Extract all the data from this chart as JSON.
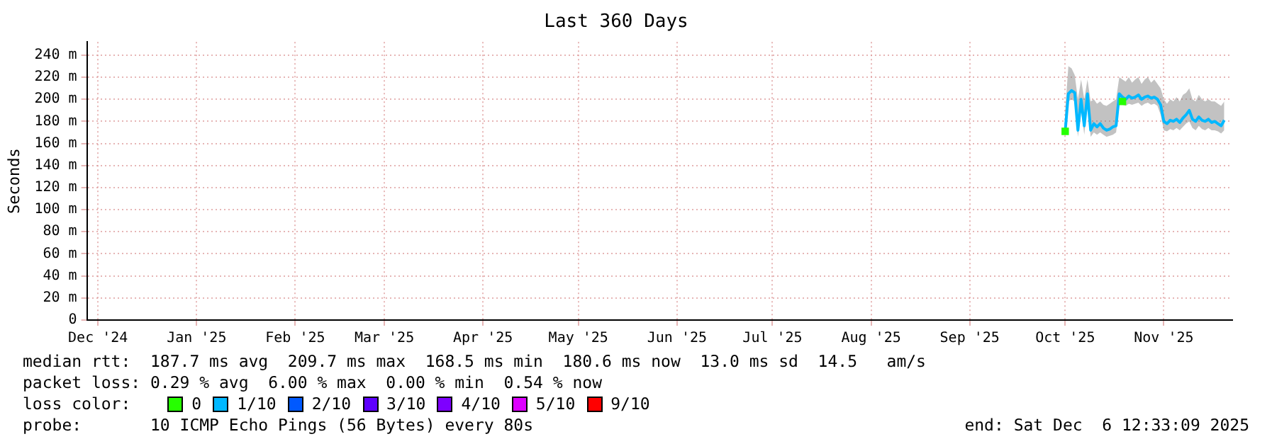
{
  "chart_data": {
    "type": "line",
    "title": "Last 360 Days",
    "ylabel": "Seconds",
    "legend_title": "loss color:",
    "xlim": [
      "2024-12-11T12:33",
      "2025-12-06T12:33"
    ],
    "xticks": [
      {
        "value": "2024-12-15",
        "label": "Dec '24"
      },
      {
        "value": "2025-01-15",
        "label": "Jan '25"
      },
      {
        "value": "2025-02-15",
        "label": "Feb '25"
      },
      {
        "value": "2025-03-15",
        "label": "Mar '25"
      },
      {
        "value": "2025-04-15",
        "label": "Apr '25"
      },
      {
        "value": "2025-05-15",
        "label": "May '25"
      },
      {
        "value": "2025-06-15",
        "label": "Jun '25"
      },
      {
        "value": "2025-07-15",
        "label": "Jul '25"
      },
      {
        "value": "2025-08-15",
        "label": "Aug '25"
      },
      {
        "value": "2025-09-15",
        "label": "Sep '25"
      },
      {
        "value": "2025-10-15",
        "label": "Oct '25"
      },
      {
        "value": "2025-11-15",
        "label": "Nov '25"
      }
    ],
    "ylim": [
      0,
      252
    ],
    "yticks": [
      0,
      {
        "value": 20,
        "label": "20 m"
      },
      {
        "value": 40,
        "label": "40 m"
      },
      {
        "value": 60,
        "label": "60 m"
      },
      {
        "value": 80,
        "label": "80 m"
      },
      {
        "value": 100,
        "label": "100 m"
      },
      {
        "value": 120,
        "label": "120 m"
      },
      {
        "value": 140,
        "label": "140 m"
      },
      {
        "value": 160,
        "label": "160 m"
      },
      {
        "value": 180,
        "label": "180 m"
      },
      {
        "value": 200,
        "label": "200 m"
      },
      {
        "value": 220,
        "label": "220 m"
      },
      {
        "value": 240,
        "label": "240 m"
      }
    ],
    "grid": true,
    "legend": "bottom",
    "marker": "none",
    "line_style": "solid",
    "x": [
      "2025-10-15",
      "2025-10-16",
      "2025-10-17",
      "2025-10-18",
      "2025-10-19",
      "2025-10-20",
      "2025-10-21",
      "2025-10-22",
      "2025-10-23",
      "2025-10-24",
      "2025-10-25",
      "2025-10-26",
      "2025-10-27",
      "2025-10-28",
      "2025-10-29",
      "2025-10-30",
      "2025-10-31",
      "2025-11-01",
      "2025-11-02",
      "2025-11-03",
      "2025-11-04",
      "2025-11-05",
      "2025-11-06",
      "2025-11-07",
      "2025-11-08",
      "2025-11-09",
      "2025-11-10",
      "2025-11-11",
      "2025-11-12",
      "2025-11-13",
      "2025-11-14",
      "2025-11-15",
      "2025-11-16",
      "2025-11-17",
      "2025-11-18",
      "2025-11-19",
      "2025-11-20",
      "2025-11-21",
      "2025-11-22",
      "2025-11-23",
      "2025-11-24",
      "2025-11-25",
      "2025-11-26",
      "2025-11-27",
      "2025-11-28",
      "2025-11-29",
      "2025-11-30",
      "2025-12-01",
      "2025-12-02",
      "2025-12-03",
      "2025-12-04"
    ],
    "series": [
      {
        "name": "0",
        "color": "#26ff00",
        "type": "scatter",
        "marker": "square",
        "x": [
          "2025-10-15",
          "2025-11-02"
        ],
        "values": [
          171,
          198
        ]
      },
      {
        "name": "1/10",
        "color": "#00b8ff",
        "values": [
          171,
          205,
          208,
          206,
          172,
          200,
          176,
          205,
          172,
          178,
          175,
          178,
          174,
          172,
          173,
          175,
          176,
          205,
          202,
          200,
          203,
          201,
          202,
          204,
          200,
          202,
          203,
          201,
          202,
          200,
          195,
          180,
          178,
          181,
          180,
          182,
          179,
          183,
          186,
          190,
          182,
          180,
          184,
          181,
          180,
          182,
          179,
          180,
          178,
          176,
          181
        ],
        "lower": [
          165,
          198,
          200,
          198,
          166,
          190,
          168,
          196,
          166,
          170,
          168,
          170,
          168,
          166,
          167,
          168,
          170,
          196,
          195,
          194,
          196,
          195,
          196,
          197,
          194,
          196,
          197,
          195,
          196,
          194,
          186,
          172,
          171,
          173,
          172,
          174,
          172,
          175,
          178,
          180,
          174,
          172,
          176,
          173,
          172,
          174,
          172,
          172,
          171,
          169,
          172
        ],
        "upper": [
          190,
          230,
          228,
          222,
          200,
          218,
          200,
          218,
          198,
          200,
          196,
          198,
          195,
          194,
          196,
          198,
          200,
          220,
          218,
          216,
          220,
          215,
          218,
          220,
          214,
          218,
          220,
          215,
          218,
          214,
          210,
          200,
          196,
          200,
          198,
          202,
          198,
          204,
          206,
          210,
          200,
          198,
          204,
          200,
          198,
          200,
          198,
          198,
          196,
          194,
          198
        ]
      },
      {
        "name": "2/10",
        "color": "#0059ff",
        "values": [
          null,
          null,
          null,
          null,
          null,
          null,
          null,
          null,
          null,
          null,
          null,
          null,
          null,
          null,
          null,
          null,
          null,
          null,
          null,
          null,
          null,
          null,
          null,
          null,
          null,
          null,
          null,
          null,
          null,
          null,
          null,
          null,
          null,
          null,
          null,
          null,
          null,
          null,
          null,
          null,
          null,
          null,
          null,
          null,
          null,
          null,
          null,
          null,
          null,
          null,
          null
        ]
      },
      {
        "name": "3/10",
        "color": "#5e00ff",
        "values": [
          null,
          null,
          null,
          null,
          null,
          null,
          null,
          null,
          null,
          null,
          null,
          null,
          null,
          null,
          null,
          null,
          null,
          null,
          null,
          null,
          null,
          null,
          null,
          null,
          null,
          null,
          null,
          null,
          null,
          null,
          null,
          null,
          null,
          null,
          null,
          null,
          null,
          null,
          null,
          null,
          null,
          null,
          null,
          null,
          null,
          null,
          null,
          null,
          null,
          null,
          null
        ]
      },
      {
        "name": "4/10",
        "color": "#7e00ff",
        "values": [
          null,
          null,
          null,
          null,
          null,
          null,
          null,
          null,
          null,
          null,
          null,
          null,
          null,
          null,
          null,
          null,
          null,
          null,
          null,
          null,
          null,
          null,
          null,
          null,
          null,
          null,
          null,
          null,
          null,
          null,
          null,
          null,
          null,
          null,
          null,
          null,
          null,
          null,
          null,
          null,
          null,
          null,
          null,
          null,
          null,
          null,
          null,
          null,
          null,
          null,
          null
        ]
      },
      {
        "name": "5/10",
        "color": "#dd00ff",
        "values": [
          null,
          null,
          null,
          null,
          null,
          null,
          null,
          null,
          null,
          null,
          null,
          null,
          null,
          null,
          null,
          null,
          null,
          null,
          null,
          null,
          null,
          null,
          null,
          null,
          null,
          null,
          null,
          null,
          null,
          null,
          null,
          null,
          null,
          null,
          null,
          null,
          null,
          null,
          null,
          null,
          null,
          null,
          null,
          null,
          null,
          null,
          null,
          null,
          null,
          null,
          null
        ]
      },
      {
        "name": "9/10",
        "color": "#ff0000",
        "values": [
          null,
          null,
          null,
          null,
          null,
          null,
          null,
          null,
          null,
          null,
          null,
          null,
          null,
          null,
          null,
          null,
          null,
          null,
          null,
          null,
          null,
          null,
          null,
          null,
          null,
          null,
          null,
          null,
          null,
          null,
          null,
          null,
          null,
          null,
          null,
          null,
          null,
          null,
          null,
          null,
          null,
          null,
          null,
          null,
          null,
          null,
          null,
          null,
          null,
          null,
          null
        ]
      }
    ],
    "annotations": [
      "median rtt:  187.7 ms avg  209.7 ms max  168.5 ms min  180.6 ms now  13.0 ms sd  14.5   am/s",
      "packet loss: 0.29 % avg  6.00 % max  0.00 % min  0.54 % now",
      "probe:       10 ICMP Echo Pings (56 Bytes) every 80s",
      "end: Sat Dec  6 12:33:09 2025"
    ]
  }
}
